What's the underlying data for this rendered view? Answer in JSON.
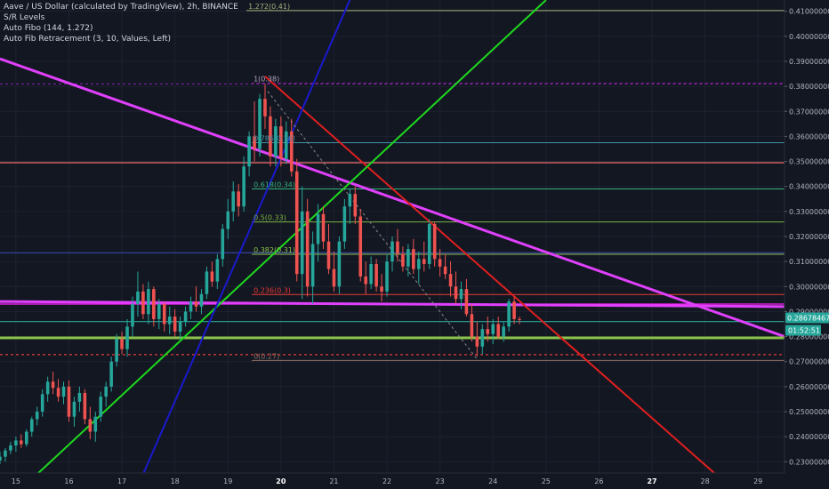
{
  "chart_data": {
    "type": "candlestick",
    "title": "Aave / US Dollar (calculated by TradingView), 2h, BINANCE",
    "indicators": [
      "S/R Levels",
      "Auto Fibo (144, 1.272)",
      "Auto Fib Retracement (3, 10, Values, Left)"
    ],
    "x_ticks": [
      "15",
      "16",
      "17",
      "18",
      "19",
      "20",
      "21",
      "22",
      "23",
      "24",
      "25",
      "26",
      "27",
      "28",
      "29"
    ],
    "x_tick_bold": [
      false,
      false,
      false,
      false,
      false,
      true,
      false,
      false,
      false,
      false,
      false,
      false,
      true,
      false,
      false
    ],
    "x_range": [
      14.7,
      29.5
    ],
    "y_range": [
      0.2255,
      0.4145
    ],
    "y_ticks": [
      "0.41000000",
      "0.40000000",
      "0.39000000",
      "0.38000000",
      "0.37000000",
      "0.36000000",
      "0.35000000",
      "0.34000000",
      "0.33000000",
      "0.32000000",
      "0.31000000",
      "0.30000000",
      "0.29000000",
      "0.28000000",
      "0.27000000",
      "0.26000000",
      "0.25000000",
      "0.24000000",
      "0.23000000"
    ],
    "price_label": {
      "price": 0.28678,
      "text": "0.28678467",
      "countdown": "01:52:51"
    },
    "candles": [
      [
        14.7,
        0.2305,
        0.234,
        0.229,
        0.232
      ],
      [
        14.8,
        0.232,
        0.2355,
        0.23,
        0.2345
      ],
      [
        14.9,
        0.2345,
        0.238,
        0.233,
        0.2365
      ],
      [
        15.0,
        0.2365,
        0.24,
        0.234,
        0.2385
      ],
      [
        15.1,
        0.2385,
        0.241,
        0.2355,
        0.237
      ],
      [
        15.2,
        0.237,
        0.243,
        0.236,
        0.242
      ],
      [
        15.3,
        0.242,
        0.248,
        0.24,
        0.247
      ],
      [
        15.4,
        0.247,
        0.252,
        0.2445,
        0.25
      ],
      [
        15.5,
        0.25,
        0.259,
        0.248,
        0.257
      ],
      [
        15.6,
        0.257,
        0.264,
        0.254,
        0.262
      ],
      [
        15.7,
        0.262,
        0.266,
        0.257,
        0.2595
      ],
      [
        15.8,
        0.2595,
        0.263,
        0.254,
        0.256
      ],
      [
        15.9,
        0.256,
        0.262,
        0.253,
        0.26
      ],
      [
        16.0,
        0.26,
        0.2625,
        0.246,
        0.248
      ],
      [
        16.1,
        0.248,
        0.256,
        0.244,
        0.254
      ],
      [
        16.2,
        0.254,
        0.26,
        0.25,
        0.2575
      ],
      [
        16.3,
        0.2575,
        0.259,
        0.245,
        0.247
      ],
      [
        16.4,
        0.247,
        0.252,
        0.239,
        0.242
      ],
      [
        16.5,
        0.242,
        0.25,
        0.238,
        0.248
      ],
      [
        16.6,
        0.248,
        0.258,
        0.246,
        0.256
      ],
      [
        16.7,
        0.256,
        0.262,
        0.252,
        0.26
      ],
      [
        16.8,
        0.26,
        0.272,
        0.258,
        0.27
      ],
      [
        16.9,
        0.27,
        0.281,
        0.268,
        0.279
      ],
      [
        17.0,
        0.279,
        0.282,
        0.273,
        0.275
      ],
      [
        17.1,
        0.275,
        0.287,
        0.272,
        0.284
      ],
      [
        17.2,
        0.284,
        0.296,
        0.28,
        0.293
      ],
      [
        17.3,
        0.293,
        0.306,
        0.288,
        0.298
      ],
      [
        17.4,
        0.298,
        0.301,
        0.287,
        0.289
      ],
      [
        17.5,
        0.289,
        0.302,
        0.285,
        0.299
      ],
      [
        17.6,
        0.299,
        0.3,
        0.284,
        0.287
      ],
      [
        17.7,
        0.287,
        0.295,
        0.283,
        0.293
      ],
      [
        17.8,
        0.293,
        0.294,
        0.282,
        0.285
      ],
      [
        17.9,
        0.285,
        0.292,
        0.281,
        0.288
      ],
      [
        18.0,
        0.288,
        0.291,
        0.28,
        0.282
      ],
      [
        18.1,
        0.282,
        0.288,
        0.279,
        0.286
      ],
      [
        18.2,
        0.286,
        0.292,
        0.284,
        0.29
      ],
      [
        18.3,
        0.29,
        0.296,
        0.287,
        0.294
      ],
      [
        18.4,
        0.294,
        0.3,
        0.29,
        0.292
      ],
      [
        18.5,
        0.292,
        0.299,
        0.289,
        0.297
      ],
      [
        18.6,
        0.297,
        0.308,
        0.295,
        0.306
      ],
      [
        18.7,
        0.306,
        0.31,
        0.3,
        0.302
      ],
      [
        18.8,
        0.302,
        0.313,
        0.299,
        0.311
      ],
      [
        18.9,
        0.311,
        0.325,
        0.308,
        0.323
      ],
      [
        19.0,
        0.323,
        0.335,
        0.319,
        0.33
      ],
      [
        19.1,
        0.33,
        0.342,
        0.326,
        0.338
      ],
      [
        19.2,
        0.338,
        0.341,
        0.328,
        0.332
      ],
      [
        19.3,
        0.332,
        0.352,
        0.33,
        0.348
      ],
      [
        19.4,
        0.348,
        0.362,
        0.344,
        0.36
      ],
      [
        19.5,
        0.36,
        0.374,
        0.35,
        0.355
      ],
      [
        19.6,
        0.355,
        0.377,
        0.352,
        0.375
      ],
      [
        19.7,
        0.375,
        0.381,
        0.363,
        0.368
      ],
      [
        19.8,
        0.368,
        0.372,
        0.348,
        0.352
      ],
      [
        19.9,
        0.352,
        0.367,
        0.348,
        0.364
      ],
      [
        20.0,
        0.364,
        0.368,
        0.348,
        0.351
      ],
      [
        20.1,
        0.351,
        0.366,
        0.349,
        0.362
      ],
      [
        20.2,
        0.362,
        0.367,
        0.344,
        0.346
      ],
      [
        20.3,
        0.346,
        0.351,
        0.302,
        0.305
      ],
      [
        20.4,
        0.305,
        0.34,
        0.295,
        0.33
      ],
      [
        20.5,
        0.33,
        0.335,
        0.296,
        0.3
      ],
      [
        20.6,
        0.3,
        0.322,
        0.293,
        0.317
      ],
      [
        20.7,
        0.317,
        0.333,
        0.31,
        0.329
      ],
      [
        20.8,
        0.329,
        0.332,
        0.315,
        0.318
      ],
      [
        20.9,
        0.318,
        0.325,
        0.305,
        0.307
      ],
      [
        21.0,
        0.307,
        0.314,
        0.298,
        0.3
      ],
      [
        21.1,
        0.3,
        0.32,
        0.297,
        0.318
      ],
      [
        21.2,
        0.318,
        0.335,
        0.315,
        0.332
      ],
      [
        21.3,
        0.332,
        0.339,
        0.325,
        0.337
      ],
      [
        21.4,
        0.337,
        0.34,
        0.325,
        0.328
      ],
      [
        21.5,
        0.328,
        0.331,
        0.302,
        0.304
      ],
      [
        21.6,
        0.304,
        0.31,
        0.297,
        0.301
      ],
      [
        21.7,
        0.301,
        0.312,
        0.299,
        0.309
      ],
      [
        21.8,
        0.309,
        0.311,
        0.298,
        0.3
      ],
      [
        21.9,
        0.3,
        0.305,
        0.294,
        0.298
      ],
      [
        22.0,
        0.298,
        0.313,
        0.296,
        0.31
      ],
      [
        22.1,
        0.31,
        0.32,
        0.306,
        0.318
      ],
      [
        22.2,
        0.318,
        0.323,
        0.31,
        0.313
      ],
      [
        22.3,
        0.313,
        0.316,
        0.306,
        0.308
      ],
      [
        22.4,
        0.308,
        0.317,
        0.304,
        0.315
      ],
      [
        22.5,
        0.315,
        0.319,
        0.305,
        0.307
      ],
      [
        22.6,
        0.307,
        0.314,
        0.301,
        0.311
      ],
      [
        22.7,
        0.311,
        0.318,
        0.306,
        0.309
      ],
      [
        22.8,
        0.309,
        0.327,
        0.307,
        0.325
      ],
      [
        22.9,
        0.325,
        0.326,
        0.308,
        0.311
      ],
      [
        23.0,
        0.311,
        0.315,
        0.304,
        0.308
      ],
      [
        23.1,
        0.308,
        0.313,
        0.303,
        0.305
      ],
      [
        23.2,
        0.305,
        0.31,
        0.296,
        0.3
      ],
      [
        23.3,
        0.3,
        0.306,
        0.293,
        0.295
      ],
      [
        23.4,
        0.295,
        0.302,
        0.291,
        0.299
      ],
      [
        23.5,
        0.299,
        0.303,
        0.288,
        0.289
      ],
      [
        23.6,
        0.289,
        0.293,
        0.278,
        0.28
      ],
      [
        23.7,
        0.28,
        0.286,
        0.272,
        0.276
      ],
      [
        23.8,
        0.276,
        0.285,
        0.273,
        0.283
      ],
      [
        23.9,
        0.283,
        0.288,
        0.278,
        0.281
      ],
      [
        24.0,
        0.281,
        0.287,
        0.277,
        0.285
      ],
      [
        24.1,
        0.285,
        0.288,
        0.279,
        0.28
      ],
      [
        24.2,
        0.28,
        0.286,
        0.278,
        0.284
      ],
      [
        24.3,
        0.284,
        0.295,
        0.282,
        0.294
      ],
      [
        24.4,
        0.294,
        0.296,
        0.285,
        0.287
      ],
      [
        24.5,
        0.287,
        0.288,
        0.285,
        0.2868
      ]
    ],
    "fib_levels": [
      {
        "label": "1.272(0.41)",
        "price": 0.4103,
        "x_start": 19.35,
        "color": "#a3b37a",
        "dash": false
      },
      {
        "label": "1(0.38)",
        "price": 0.3812,
        "x_start": 19.45,
        "color": "#9c27b0",
        "dash": true
      },
      {
        "label": "0.786(0.36)",
        "price": 0.3575,
        "x_start": 19.45,
        "color": "#3e92a9",
        "dash": false
      },
      {
        "label": "0.618(0.34)",
        "price": 0.339,
        "x_start": 19.45,
        "color": "#34b27d",
        "dash": false
      },
      {
        "label": "0.5(0.33)",
        "price": 0.3258,
        "x_start": 19.45,
        "color": "#7cb342",
        "dash": false
      },
      {
        "label": "0.382(0.31)",
        "price": 0.3129,
        "x_start": 19.45,
        "color": "#8bc34a",
        "dash": false
      },
      {
        "label": "0.236(0.3)",
        "price": 0.2968,
        "x_start": 19.45,
        "color": "#e53935",
        "dash": false
      },
      {
        "label": "0(0.27)",
        "price": 0.2705,
        "x_start": 19.45,
        "color": "#8d6e63",
        "dash": false
      }
    ],
    "sr_levels": [
      {
        "price": 0.381,
        "color": "#7b1fa2",
        "dash": true
      },
      {
        "price": 0.3495,
        "color": "#ef6f6c",
        "dash": false
      },
      {
        "price": 0.3135,
        "color": "#3949ab",
        "dash": false
      },
      {
        "price": 0.293,
        "color": "#ff1fff",
        "dash": false
      },
      {
        "price": 0.286,
        "color": "#26a69a",
        "dash": false
      },
      {
        "price": 0.2795,
        "color": "#8bc34a",
        "dash": false
      },
      {
        "price": 0.2728,
        "color": "#e53935",
        "dash": true
      }
    ],
    "trendlines": [
      {
        "from": [
          14.7,
          0.391
        ],
        "to": [
          29.5,
          0.28
        ],
        "color": "#e040fb",
        "width": 3
      },
      {
        "from": [
          14.7,
          0.294
        ],
        "to": [
          29.5,
          0.292
        ],
        "color": "#e040fb",
        "width": 3
      },
      {
        "from": [
          14.7,
          0.2795
        ],
        "to": [
          29.5,
          0.2795
        ],
        "color": "#8bc34a",
        "width": 3
      },
      {
        "from": [
          19.7,
          0.384
        ],
        "to": [
          28.2,
          0.225
        ],
        "color": "#e01f1f",
        "width": 2
      },
      {
        "from": [
          15.4,
          0.225
        ],
        "to": [
          25.0,
          0.4145
        ],
        "color": "#1ed81e",
        "width": 2
      },
      {
        "from": [
          17.4,
          0.225
        ],
        "to": [
          21.3,
          0.4145
        ],
        "color": "#1a1acd",
        "width": 2
      },
      {
        "from": [
          19.75,
          0.378
        ],
        "to": [
          23.7,
          0.271
        ],
        "color": "#888888",
        "width": 1,
        "dash": true
      }
    ]
  }
}
